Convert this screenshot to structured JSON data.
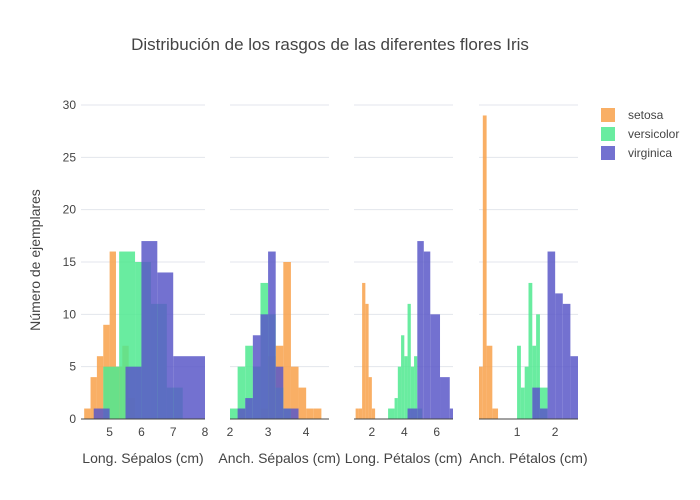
{
  "chart_data": {
    "type": "bar",
    "title": "Distribución de los rasgos de las diferentes flores Iris",
    "ylabel": "Número de ejemplares",
    "ylim": [
      0,
      30
    ],
    "y_ticks": [
      0,
      5,
      10,
      15,
      20,
      25,
      30
    ],
    "grid": true,
    "legend_position": "top-right",
    "series_names": [
      "setosa",
      "versicolor",
      "virginica"
    ],
    "colors": {
      "setosa": "#f8a14a",
      "versicolor": "#4fe98f",
      "virginica": "#5a58c8"
    },
    "panels": [
      {
        "xlabel": "Long. Sépalos (cm)",
        "xlim": [
          4.1,
          8.0
        ],
        "x_ticks": [
          5,
          6,
          7,
          8
        ],
        "series": [
          {
            "name": "setosa",
            "bins": [
              [
                4.2,
                4.4,
                1
              ],
              [
                4.4,
                4.6,
                4
              ],
              [
                4.6,
                4.8,
                6
              ],
              [
                4.8,
                5.0,
                9
              ],
              [
                5.0,
                5.2,
                16
              ],
              [
                5.2,
                5.4,
                5
              ],
              [
                5.4,
                5.6,
                7
              ],
              [
                5.6,
                5.8,
                2
              ]
            ]
          },
          {
            "name": "versicolor",
            "bins": [
              [
                4.8,
                5.3,
                5
              ],
              [
                5.3,
                5.8,
                16
              ],
              [
                5.8,
                6.3,
                15
              ],
              [
                6.3,
                6.8,
                11
              ],
              [
                6.8,
                7.3,
                3
              ]
            ]
          },
          {
            "name": "virginica",
            "bins": [
              [
                4.5,
                5.0,
                1
              ],
              [
                5.5,
                6.0,
                5
              ],
              [
                6.0,
                6.5,
                17
              ],
              [
                6.5,
                7.0,
                14
              ],
              [
                7.0,
                8.0,
                6
              ]
            ]
          }
        ]
      },
      {
        "xlabel": "Anch. Sépalos (cm)",
        "xlim": [
          2.0,
          4.6
        ],
        "x_ticks": [
          2,
          3,
          4
        ],
        "series": [
          {
            "name": "setosa",
            "bins": [
              [
                2.2,
                2.4,
                1
              ],
              [
                2.8,
                3.0,
                1
              ],
              [
                3.0,
                3.2,
                6
              ],
              [
                3.2,
                3.4,
                7
              ],
              [
                3.4,
                3.6,
                15
              ],
              [
                3.6,
                3.8,
                5
              ],
              [
                3.8,
                4.0,
                3
              ],
              [
                4.0,
                4.2,
                1
              ],
              [
                4.2,
                4.4,
                1
              ]
            ]
          },
          {
            "name": "versicolor",
            "bins": [
              [
                2.0,
                2.2,
                1
              ],
              [
                2.2,
                2.4,
                5
              ],
              [
                2.4,
                2.6,
                7
              ],
              [
                2.6,
                2.8,
                5
              ],
              [
                2.8,
                3.0,
                13
              ],
              [
                3.0,
                3.2,
                10
              ],
              [
                3.2,
                3.4,
                3
              ],
              [
                3.4,
                3.6,
                1
              ]
            ]
          },
          {
            "name": "virginica",
            "bins": [
              [
                2.2,
                2.4,
                1
              ],
              [
                2.4,
                2.6,
                2
              ],
              [
                2.6,
                2.8,
                8
              ],
              [
                2.8,
                3.0,
                10
              ],
              [
                3.0,
                3.2,
                16
              ],
              [
                3.2,
                3.4,
                5
              ],
              [
                3.4,
                3.6,
                1
              ],
              [
                3.6,
                3.8,
                1
              ]
            ]
          }
        ]
      },
      {
        "xlabel": "Long. Pétalos (cm)",
        "xlim": [
          0.9,
          7.0
        ],
        "x_ticks": [
          2,
          4,
          6
        ],
        "series": [
          {
            "name": "setosa",
            "bins": [
              [
                1.0,
                1.2,
                1
              ],
              [
                1.2,
                1.4,
                1
              ],
              [
                1.4,
                1.6,
                13
              ],
              [
                1.6,
                1.8,
                11
              ],
              [
                1.8,
                2.0,
                4
              ],
              [
                2.0,
                2.2,
                1
              ]
            ]
          },
          {
            "name": "versicolor",
            "bins": [
              [
                3.0,
                3.4,
                1
              ],
              [
                3.4,
                3.6,
                2
              ],
              [
                3.6,
                3.8,
                5
              ],
              [
                3.8,
                4.0,
                8
              ],
              [
                4.0,
                4.2,
                6
              ],
              [
                4.2,
                4.4,
                11
              ],
              [
                4.4,
                4.6,
                5
              ],
              [
                4.6,
                4.8,
                6
              ],
              [
                4.8,
                5.1,
                1
              ]
            ]
          },
          {
            "name": "virginica",
            "bins": [
              [
                4.2,
                4.8,
                1
              ],
              [
                4.8,
                5.2,
                17
              ],
              [
                5.2,
                5.6,
                16
              ],
              [
                5.6,
                6.2,
                10
              ],
              [
                6.2,
                6.8,
                4
              ],
              [
                6.8,
                7.0,
                1
              ]
            ]
          }
        ]
      },
      {
        "xlabel": "Anch. Pétalos (cm)",
        "xlim": [
          0.0,
          2.6
        ],
        "x_ticks": [
          1,
          2
        ],
        "series": [
          {
            "name": "setosa",
            "bins": [
              [
                0.0,
                0.1,
                5
              ],
              [
                0.1,
                0.2,
                29
              ],
              [
                0.2,
                0.35,
                7
              ],
              [
                0.35,
                0.5,
                1
              ]
            ]
          },
          {
            "name": "versicolor",
            "bins": [
              [
                1.0,
                1.1,
                7
              ],
              [
                1.1,
                1.2,
                3
              ],
              [
                1.2,
                1.3,
                5
              ],
              [
                1.3,
                1.4,
                13
              ],
              [
                1.4,
                1.5,
                7
              ],
              [
                1.5,
                1.6,
                10
              ],
              [
                1.6,
                1.8,
                3
              ]
            ]
          },
          {
            "name": "virginica",
            "bins": [
              [
                1.4,
                1.6,
                3
              ],
              [
                1.6,
                1.8,
                1
              ],
              [
                1.8,
                2.0,
                16
              ],
              [
                2.0,
                2.2,
                12
              ],
              [
                2.2,
                2.4,
                11
              ],
              [
                2.4,
                2.6,
                6
              ]
            ]
          }
        ]
      }
    ]
  }
}
